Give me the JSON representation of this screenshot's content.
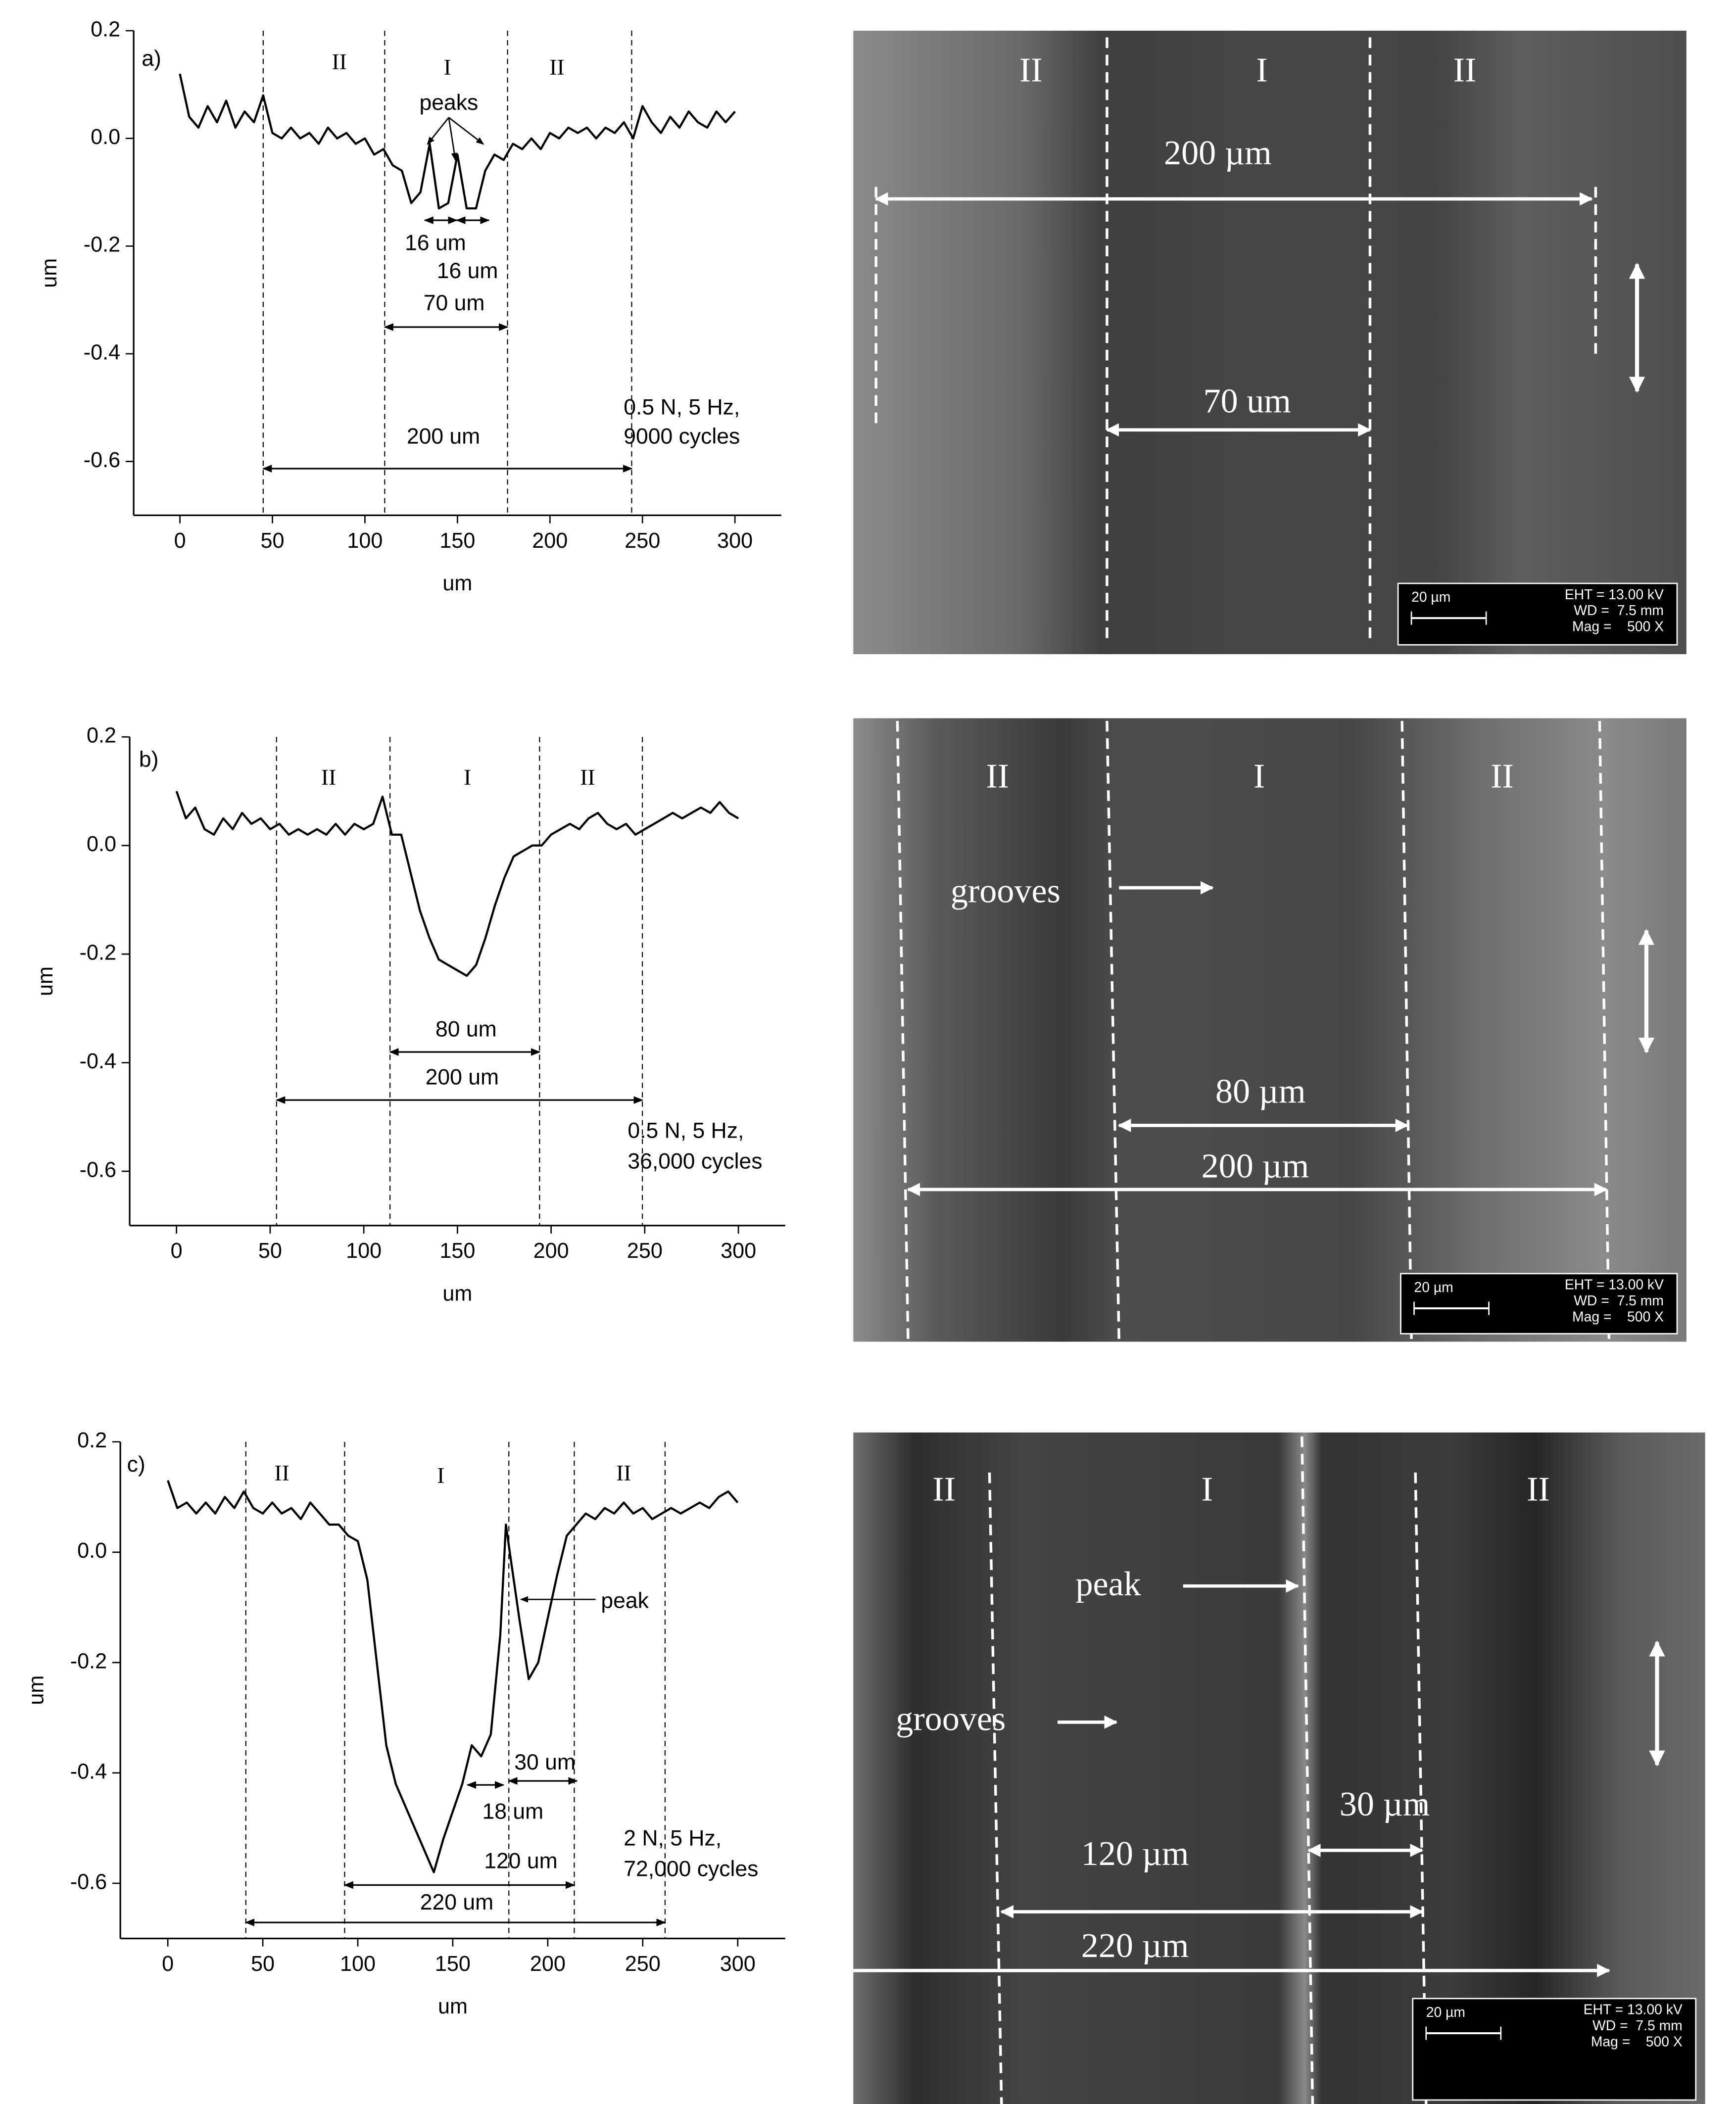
{
  "chart_data": [
    {
      "type": "line",
      "color": "#000000",
      "x_label": "um",
      "y_label": "um",
      "xlim": [
        -25,
        325
      ],
      "ylim": [
        -0.7,
        0.2
      ],
      "xticks": [
        0,
        50,
        100,
        150,
        200,
        250,
        300
      ],
      "yticks": [
        0.2,
        {
          "value": 0,
          "label": "0.0"
        },
        -0.2,
        -0.4,
        -0.6
      ],
      "x": [
        0,
        5,
        10,
        15,
        20,
        25,
        30,
        35,
        40,
        45,
        50,
        55,
        60,
        65,
        70,
        75,
        80,
        85,
        90,
        95,
        100,
        105,
        110,
        115,
        120,
        125,
        130,
        135,
        140,
        145,
        150,
        155,
        160,
        165,
        170,
        175,
        180,
        185,
        190,
        195,
        200,
        205,
        210,
        215,
        220,
        225,
        230,
        235,
        240,
        245,
        250,
        255,
        260,
        265,
        270,
        275,
        280,
        285,
        290,
        295,
        300
      ],
      "values": [
        0.12,
        0.04,
        0.02,
        0.06,
        0.03,
        0.07,
        0.02,
        0.05,
        0.03,
        0.08,
        0.01,
        0.0,
        0.02,
        0.0,
        0.01,
        -0.01,
        0.02,
        0.0,
        0.01,
        -0.01,
        0.0,
        -0.03,
        -0.02,
        -0.05,
        -0.06,
        -0.12,
        -0.1,
        -0.01,
        -0.13,
        -0.12,
        -0.03,
        -0.13,
        -0.13,
        -0.06,
        -0.03,
        -0.04,
        -0.01,
        -0.02,
        0.0,
        -0.02,
        0.01,
        0.0,
        0.02,
        0.01,
        0.02,
        0.0,
        0.02,
        0.01,
        0.03,
        0.0,
        0.06,
        0.03,
        0.01,
        0.04,
        0.02,
        0.05,
        0.03,
        0.02,
        0.05,
        0.03,
        0.05
      ],
      "annotations": [
        "a)",
        "II",
        "I",
        "II",
        "peaks",
        "16 um",
        "16 um",
        "70 um",
        "200 um",
        "0.5 N, 5 Hz,",
        "9000 cycles"
      ]
    },
    {
      "type": "line",
      "color": "#000000",
      "x_label": "um",
      "y_label": "um",
      "xlim": [
        -25,
        325
      ],
      "ylim": [
        -0.7,
        0.2
      ],
      "xticks": [
        0,
        50,
        100,
        150,
        200,
        250,
        300
      ],
      "yticks": [
        0.2,
        {
          "value": 0,
          "label": "0.0"
        },
        -0.2,
        -0.4,
        -0.6
      ],
      "x": [
        0,
        5,
        10,
        15,
        20,
        25,
        30,
        35,
        40,
        45,
        50,
        55,
        60,
        65,
        70,
        75,
        80,
        85,
        90,
        95,
        100,
        105,
        110,
        115,
        120,
        125,
        130,
        135,
        140,
        145,
        150,
        155,
        160,
        165,
        170,
        175,
        180,
        185,
        190,
        195,
        200,
        205,
        210,
        215,
        220,
        225,
        230,
        235,
        240,
        245,
        250,
        255,
        260,
        265,
        270,
        275,
        280,
        285,
        290,
        295,
        300
      ],
      "values": [
        0.1,
        0.05,
        0.07,
        0.03,
        0.02,
        0.05,
        0.03,
        0.06,
        0.04,
        0.05,
        0.03,
        0.04,
        0.02,
        0.03,
        0.02,
        0.03,
        0.02,
        0.04,
        0.02,
        0.04,
        0.03,
        0.04,
        0.09,
        0.02,
        0.02,
        -0.05,
        -0.12,
        -0.17,
        -0.21,
        -0.22,
        -0.23,
        -0.24,
        -0.22,
        -0.17,
        -0.11,
        -0.06,
        -0.02,
        -0.01,
        0.0,
        0.0,
        0.02,
        0.03,
        0.04,
        0.03,
        0.05,
        0.06,
        0.04,
        0.03,
        0.04,
        0.02,
        0.03,
        0.04,
        0.05,
        0.06,
        0.05,
        0.06,
        0.07,
        0.06,
        0.08,
        0.06,
        0.05
      ],
      "annotations": [
        "b)",
        "II",
        "I",
        "II",
        "80 um",
        "200 um",
        "0.5 N, 5 Hz,",
        "36,000 cycles"
      ]
    },
    {
      "type": "line",
      "color": "#000000",
      "x_label": "um",
      "y_label": "um",
      "xlim": [
        -25,
        325
      ],
      "ylim": [
        -0.7,
        0.2
      ],
      "xticks": [
        0,
        50,
        100,
        150,
        200,
        250,
        300
      ],
      "yticks": [
        0.2,
        {
          "value": 0,
          "label": "0.0"
        },
        -0.2,
        -0.4,
        -0.6
      ],
      "x": [
        0,
        5,
        10,
        15,
        20,
        25,
        30,
        35,
        40,
        45,
        50,
        55,
        60,
        65,
        70,
        75,
        80,
        85,
        90,
        95,
        100,
        105,
        110,
        115,
        120,
        125,
        130,
        135,
        140,
        145,
        150,
        155,
        160,
        165,
        170,
        175,
        178,
        180,
        185,
        190,
        195,
        200,
        205,
        210,
        215,
        220,
        225,
        230,
        235,
        240,
        245,
        250,
        255,
        260,
        265,
        270,
        275,
        280,
        285,
        290,
        295,
        300
      ],
      "values": [
        0.13,
        0.08,
        0.09,
        0.07,
        0.09,
        0.07,
        0.1,
        0.08,
        0.11,
        0.08,
        0.07,
        0.09,
        0.07,
        0.08,
        0.06,
        0.09,
        0.07,
        0.05,
        0.05,
        0.03,
        0.02,
        -0.05,
        -0.2,
        -0.35,
        -0.42,
        -0.46,
        -0.5,
        -0.54,
        -0.58,
        -0.52,
        -0.47,
        -0.42,
        -0.35,
        -0.37,
        -0.33,
        -0.15,
        0.05,
        0.0,
        -0.12,
        -0.23,
        -0.2,
        -0.12,
        -0.04,
        0.03,
        0.05,
        0.07,
        0.06,
        0.08,
        0.07,
        0.09,
        0.07,
        0.08,
        0.06,
        0.07,
        0.08,
        0.07,
        0.08,
        0.09,
        0.08,
        0.1,
        0.11,
        0.09
      ],
      "annotations": [
        "c)",
        "II",
        "I",
        "II",
        "peak",
        "30 um",
        "18 um",
        "120 um",
        "220 um",
        "2 N, 5 Hz,",
        "72,000 cycles"
      ]
    }
  ],
  "images": [
    {
      "labels": [
        "II",
        "I",
        "II",
        "200 µm",
        "70 um"
      ],
      "scale_bar": "20 µm",
      "info": [
        "EHT = 13.00 kV",
        "WD =  7.5 mm",
        "Mag =    500 X"
      ]
    },
    {
      "labels": [
        "II",
        "I",
        "II",
        "grooves",
        "80 µm",
        "200 µm"
      ],
      "scale_bar": "20 µm",
      "info": [
        "EHT = 13.00 kV",
        "WD =  7.5 mm",
        "Mag =    500 X"
      ]
    },
    {
      "labels": [
        "II",
        "I",
        "II",
        "peak",
        "grooves",
        "30 µm",
        "120 µm",
        "220 µm"
      ],
      "scale_bar": "20 µm",
      "info": [
        "EHT = 13.00 kV",
        "WD =  7.5 mm",
        "Mag =    500 X"
      ]
    }
  ]
}
